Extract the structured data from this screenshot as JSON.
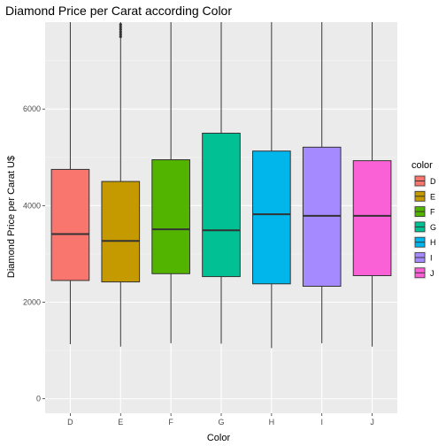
{
  "chart_data": {
    "type": "boxplot",
    "title": "Diamond Price per Carat according Color",
    "xlabel": "Color",
    "ylabel": "Diamond Price per Carat U$",
    "categories": [
      "D",
      "E",
      "F",
      "G",
      "H",
      "I",
      "J"
    ],
    "ylim": [
      -300,
      7800
    ],
    "yticks": [
      0,
      2000,
      4000,
      6000
    ],
    "grid": true,
    "legend": {
      "title": "color",
      "position": "right"
    },
    "colors": [
      "#F8766D",
      "#C49A00",
      "#53B400",
      "#00C094",
      "#00B6EB",
      "#A58AFF",
      "#FB61D7"
    ],
    "boxes": [
      {
        "category": "D",
        "whisker_low": 1130,
        "q1": 2450,
        "median": 3410,
        "q3": 4750,
        "whisker_high": 7800
      },
      {
        "category": "E",
        "whisker_low": 1080,
        "q1": 2420,
        "median": 3270,
        "q3": 4500,
        "whisker_high": 7800
      },
      {
        "category": "F",
        "whisker_low": 1150,
        "q1": 2590,
        "median": 3510,
        "q3": 4950,
        "whisker_high": 7800
      },
      {
        "category": "G",
        "whisker_low": 1140,
        "q1": 2530,
        "median": 3490,
        "q3": 5500,
        "whisker_high": 7800
      },
      {
        "category": "H",
        "whisker_low": 1050,
        "q1": 2380,
        "median": 3820,
        "q3": 5130,
        "whisker_high": 7800
      },
      {
        "category": "I",
        "whisker_low": 1150,
        "q1": 2330,
        "median": 3790,
        "q3": 5210,
        "whisker_high": 7800
      },
      {
        "category": "J",
        "whisker_low": 1080,
        "q1": 2550,
        "median": 3790,
        "q3": 4930,
        "whisker_high": 7800
      }
    ],
    "outliers": [
      {
        "category": "E",
        "values": [
          7500,
          7550,
          7600,
          7650,
          7700,
          7750
        ]
      }
    ]
  }
}
